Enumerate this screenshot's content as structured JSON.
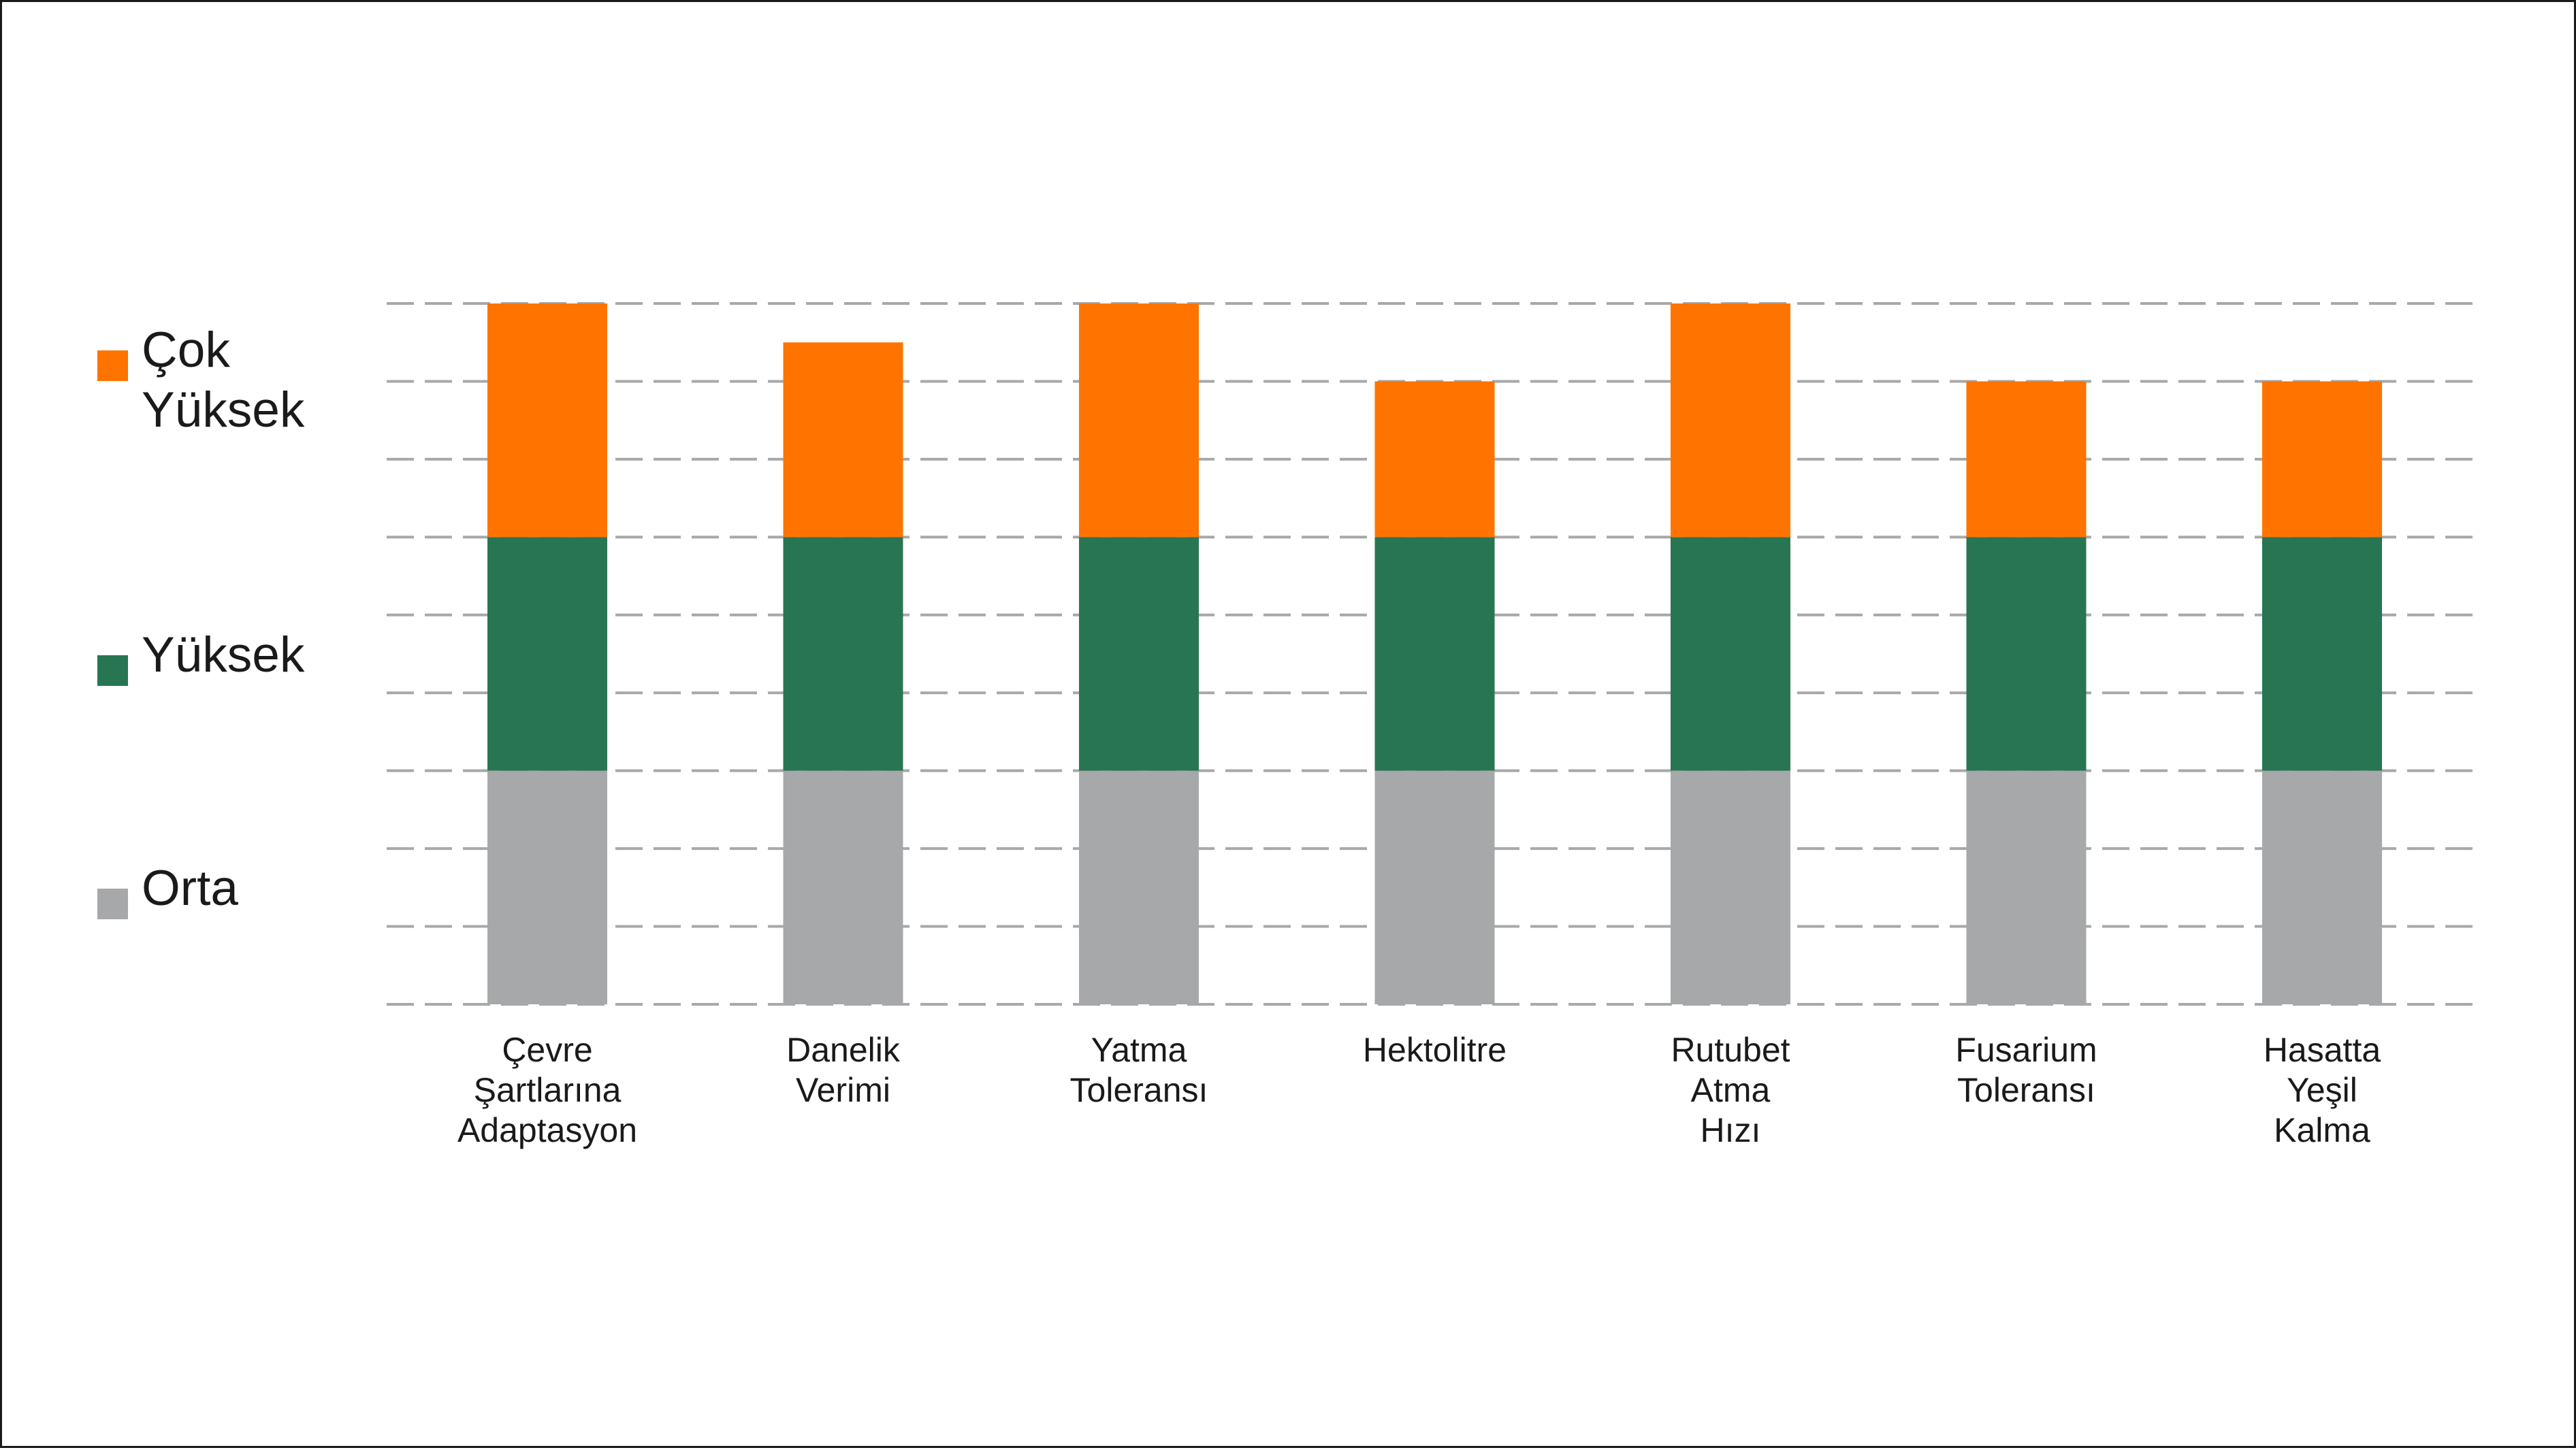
{
  "chart_data": {
    "type": "bar",
    "stacked": true,
    "categories": [
      "Çevre\nŞartlarına\nAdaptasyon",
      "Danelik\nVerimi",
      "Yatma\nToleransı",
      "Hektolitre",
      "Rutubet\nAtma\nHızı",
      "Fusarium\nToleransı",
      "Hasatta\nYeşil\nKalma"
    ],
    "series": [
      {
        "name": "Orta",
        "color": "#a7a8aa",
        "values": [
          3,
          3,
          3,
          3,
          3,
          3,
          3
        ]
      },
      {
        "name": "Yüksek",
        "color": "#287553",
        "values": [
          3,
          3,
          3,
          3,
          3,
          3,
          3
        ]
      },
      {
        "name": "Çok\nYüksek",
        "color": "#ff7300",
        "values": [
          3,
          2.5,
          3,
          2,
          3,
          2,
          2
        ]
      }
    ],
    "ylim": [
      0,
      9
    ],
    "grid": true,
    "grid_style": "dashed",
    "legend_position": "left",
    "axis_tick_labels_y": false
  }
}
